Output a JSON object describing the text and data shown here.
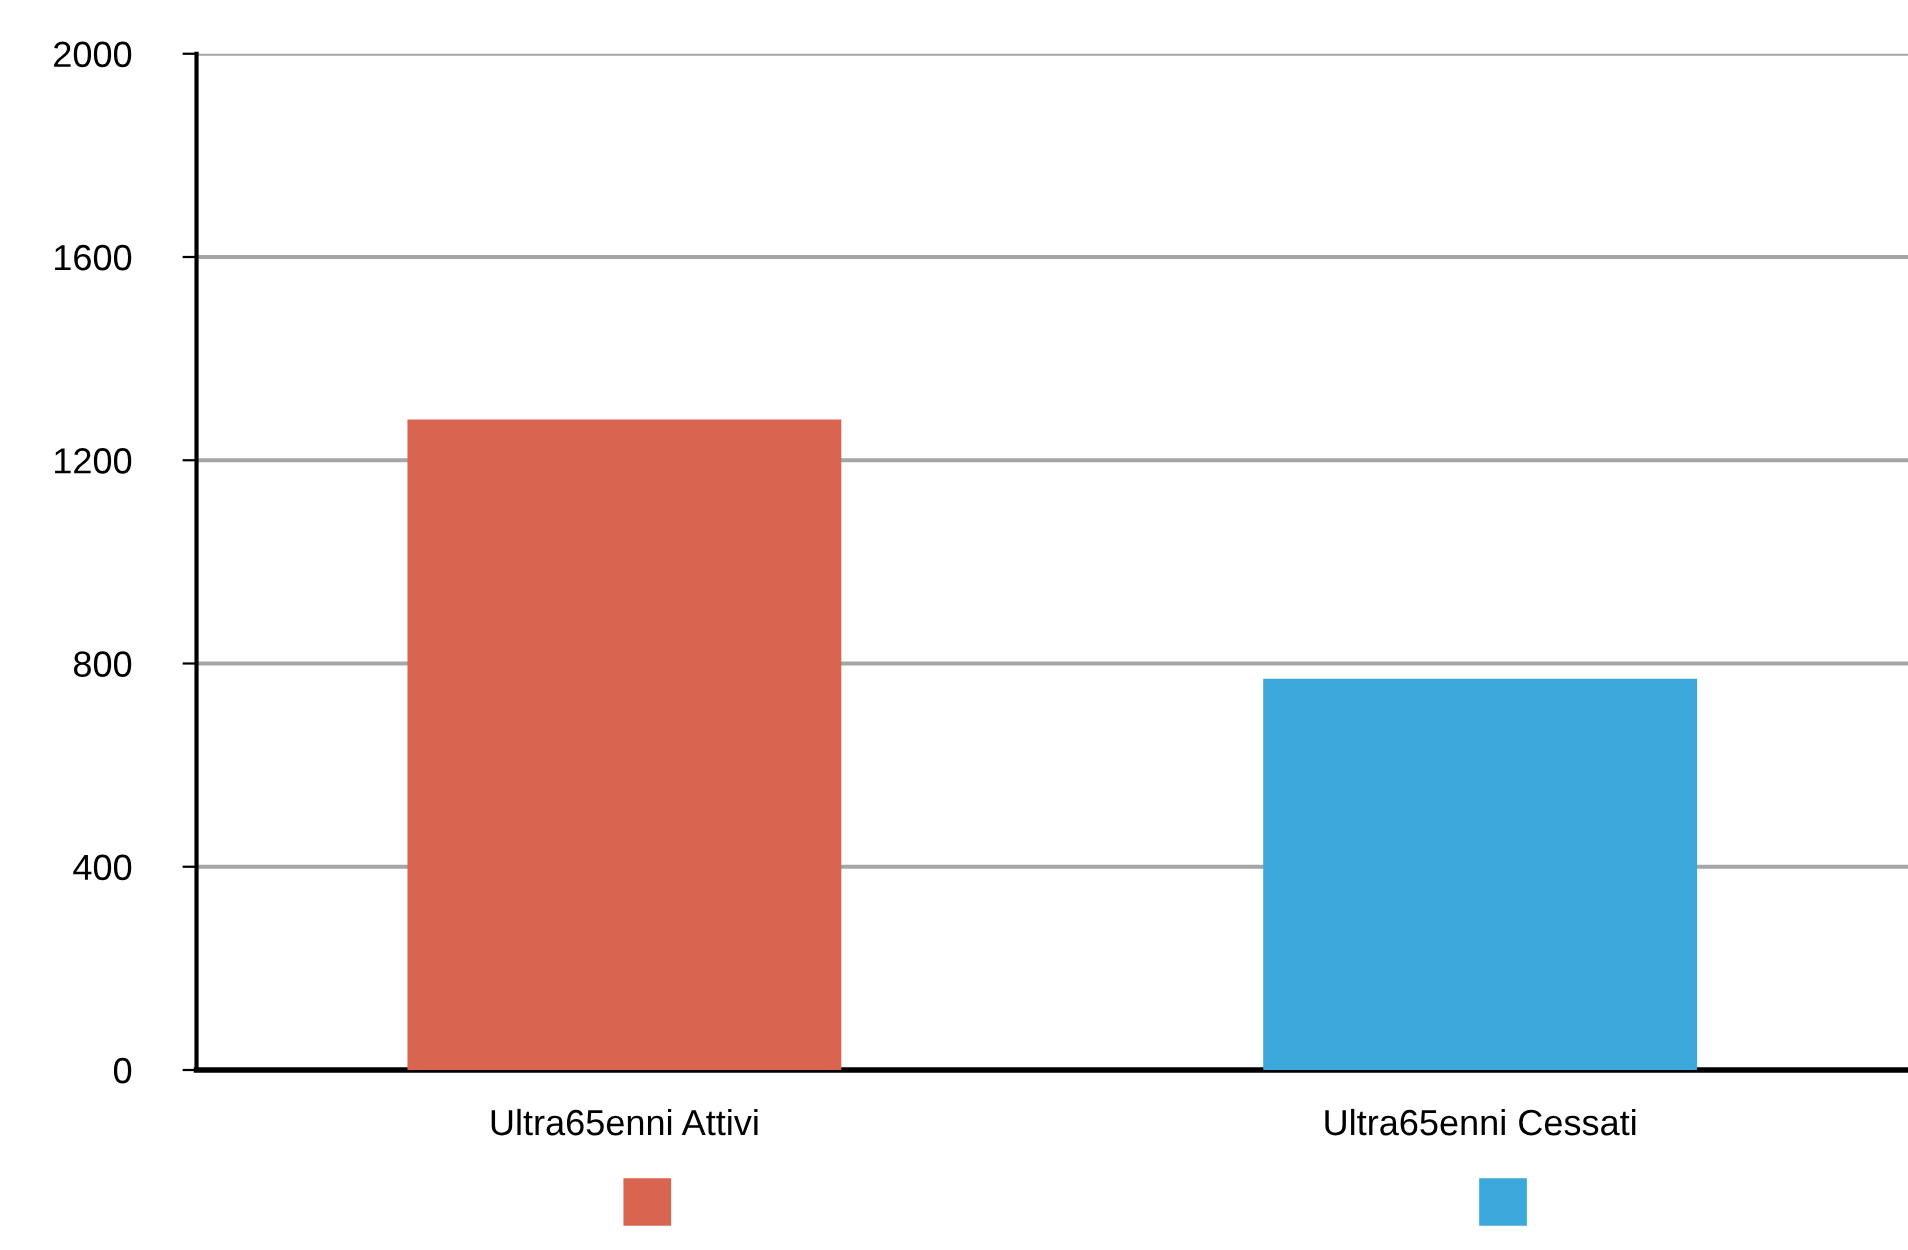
{
  "chart_data": {
    "type": "bar",
    "categories": [
      "Ultra65enni Attivi",
      "Ultra65enni Cessati"
    ],
    "values": [
      1280,
      770
    ],
    "colors": [
      "#d9644f",
      "#3aa8db"
    ],
    "ylim": [
      0,
      2000
    ],
    "yticks": [
      0,
      400,
      800,
      1200,
      1600,
      2000
    ],
    "grid": "y"
  }
}
